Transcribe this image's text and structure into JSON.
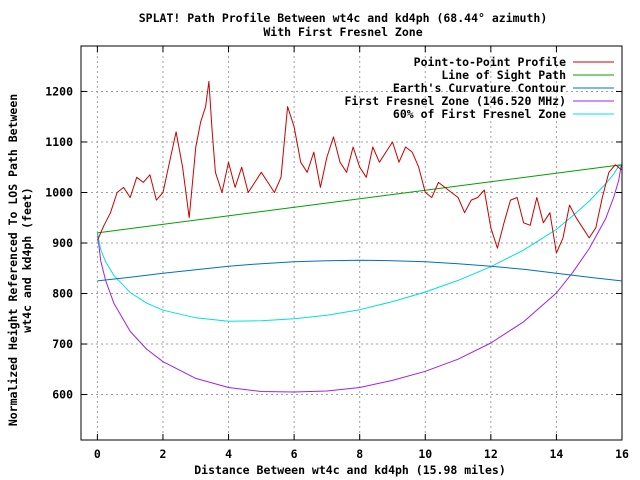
{
  "chart_data": {
    "type": "line",
    "title": "SPLAT! Path Profile Between wt4c and kd4ph (68.44° azimuth)",
    "subtitle": "With First Fresnel Zone",
    "xlabel": "Distance Between wt4c and kd4ph (15.98 miles)",
    "ylabel_line1": "Normalized Height Referenced To LOS Path Between",
    "ylabel_line2": "wt4c and kd4ph (feet)",
    "xlim": [
      -0.5,
      16
    ],
    "ylim": [
      510,
      1290
    ],
    "x_ticks": [
      0,
      2,
      4,
      6,
      8,
      10,
      12,
      14,
      16
    ],
    "y_ticks": [
      600,
      700,
      800,
      900,
      1000,
      1100,
      1200
    ],
    "grid": true,
    "legend_position": "top-right",
    "series": [
      {
        "name": "Point-to-Point Profile",
        "color": "#cc0000",
        "x": [
          0,
          0.2,
          0.4,
          0.6,
          0.8,
          1.0,
          1.2,
          1.4,
          1.6,
          1.8,
          2.0,
          2.2,
          2.4,
          2.6,
          2.8,
          3.0,
          3.15,
          3.3,
          3.4,
          3.5,
          3.6,
          3.8,
          4.0,
          4.2,
          4.4,
          4.6,
          4.8,
          5.0,
          5.2,
          5.4,
          5.6,
          5.8,
          6.0,
          6.2,
          6.4,
          6.6,
          6.8,
          7.0,
          7.2,
          7.4,
          7.6,
          7.8,
          8.0,
          8.2,
          8.4,
          8.6,
          8.8,
          9.0,
          9.2,
          9.4,
          9.6,
          9.8,
          10.0,
          10.2,
          10.4,
          10.6,
          10.8,
          11.0,
          11.2,
          11.4,
          11.6,
          11.8,
          12.0,
          12.2,
          12.4,
          12.6,
          12.8,
          13.0,
          13.2,
          13.4,
          13.6,
          13.8,
          14.0,
          14.2,
          14.4,
          14.6,
          14.8,
          15.0,
          15.2,
          15.4,
          15.6,
          15.8,
          15.98
        ],
        "values": [
          905,
          935,
          960,
          1000,
          1010,
          990,
          1030,
          1020,
          1035,
          985,
          1000,
          1060,
          1120,
          1050,
          950,
          1090,
          1140,
          1170,
          1220,
          1120,
          1040,
          1000,
          1060,
          1010,
          1050,
          1000,
          1020,
          1040,
          1020,
          1000,
          1030,
          1170,
          1130,
          1060,
          1040,
          1080,
          1010,
          1070,
          1110,
          1060,
          1040,
          1090,
          1050,
          1030,
          1090,
          1060,
          1080,
          1100,
          1060,
          1090,
          1080,
          1050,
          1000,
          990,
          1020,
          1010,
          1000,
          990,
          960,
          985,
          990,
          1005,
          930,
          890,
          940,
          985,
          990,
          940,
          935,
          990,
          940,
          960,
          880,
          910,
          975,
          950,
          930,
          910,
          930,
          990,
          1040,
          1055,
          1045
        ]
      },
      {
        "name": "Line of Sight Path",
        "color": "#00a000",
        "x": [
          0,
          15.98
        ],
        "values": [
          920,
          1055
        ]
      },
      {
        "name": "Earth's Curvature Contour",
        "color": "#0070c0",
        "x": [
          0,
          1,
          2,
          3,
          4,
          5,
          6,
          7,
          8,
          9,
          10,
          11,
          12,
          13,
          14,
          15,
          15.98
        ],
        "values": [
          825,
          832,
          840,
          847,
          854,
          859,
          863,
          865,
          866,
          865,
          863,
          859,
          854,
          848,
          840,
          832,
          825
        ]
      },
      {
        "name": "First Fresnel Zone (146.520 MHz)",
        "color": "#a020f0",
        "x": [
          0,
          0.1,
          0.25,
          0.5,
          1,
          1.5,
          2,
          3,
          4,
          5,
          6,
          7,
          8,
          9,
          10,
          11,
          12,
          13,
          14,
          14.5,
          15,
          15.5,
          15.75,
          15.9,
          15.98
        ],
        "values": [
          920,
          865,
          826,
          781,
          725,
          690,
          665,
          632,
          614,
          606,
          605,
          607,
          614,
          628,
          646,
          670,
          702,
          744,
          801,
          842,
          889,
          948,
          991,
          1024,
          1055
        ]
      },
      {
        "name": "60% of First Fresnel Zone",
        "color": "#00e0e0",
        "x": [
          0,
          0.1,
          0.25,
          0.5,
          1,
          1.5,
          2,
          3,
          4,
          5,
          6,
          7,
          8,
          9,
          10,
          11,
          12,
          13,
          14,
          14.5,
          15,
          15.5,
          15.75,
          15.9,
          15.98
        ],
        "values": [
          920,
          887,
          863,
          836,
          802,
          781,
          767,
          752,
          745,
          746,
          750,
          757,
          768,
          784,
          803,
          826,
          853,
          886,
          927,
          954,
          983,
          1017,
          1037,
          1052,
          1055
        ]
      }
    ]
  }
}
